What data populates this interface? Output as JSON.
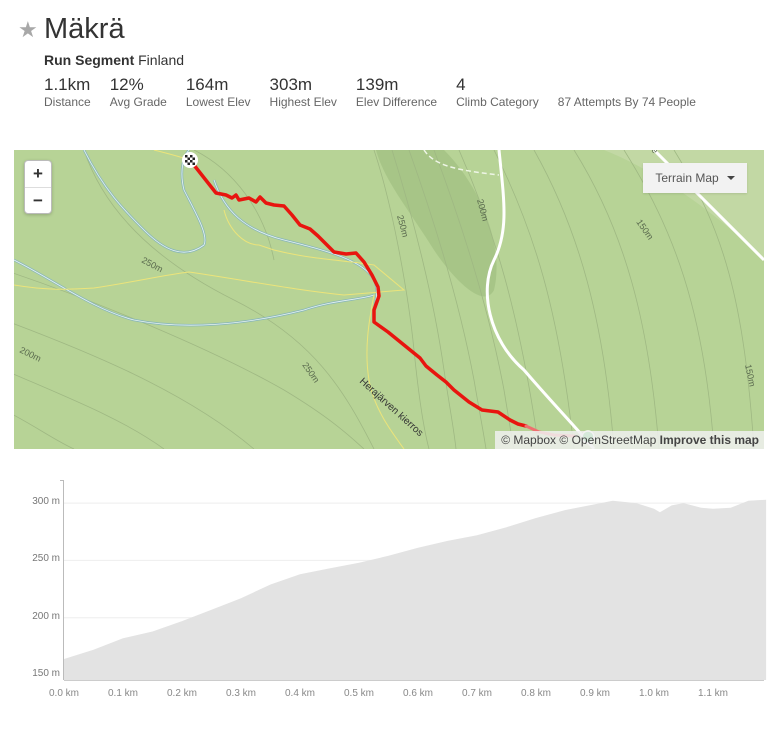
{
  "segment": {
    "star_icon": "star-icon",
    "title": "Mäkrä",
    "type": "Run Segment",
    "location": "Finland"
  },
  "stats": [
    {
      "value": "1.1km",
      "label": "Distance"
    },
    {
      "value": "12%",
      "label": "Avg Grade"
    },
    {
      "value": "164m",
      "label": "Lowest Elev"
    },
    {
      "value": "303m",
      "label": "Highest Elev"
    },
    {
      "value": "139m",
      "label": "Elev Difference"
    },
    {
      "value": "4",
      "label": "Climb Category"
    }
  ],
  "attempts": "87 Attempts By 74 People",
  "map": {
    "zoom_in": "+",
    "zoom_out": "−",
    "layer_button": "Terrain Map",
    "attribution_mapbox": "© Mapbox",
    "attribution_osm": "© OpenStreetMap",
    "improve_link": "Improve this map",
    "contour_labels": [
      "250m",
      "250m",
      "200m",
      "250m",
      "200m",
      "150m",
      "150m",
      "200m"
    ],
    "trail_label": "Herajärven kierros",
    "colors": {
      "background": "#b7d396",
      "route": "#e8150f",
      "water": "#9ec9c9",
      "trail": "#f0e68c",
      "road": "#ffffff"
    }
  },
  "chart_data": {
    "type": "area",
    "title": "",
    "xlabel": "",
    "ylabel": "",
    "x_ticks": [
      "0.0 km",
      "0.1 km",
      "0.2 km",
      "0.3 km",
      "0.4 km",
      "0.5 km",
      "0.6 km",
      "0.7 km",
      "0.8 km",
      "0.9 km",
      "1.0 km",
      "1.1 km"
    ],
    "y_ticks": [
      "150 m",
      "200 m",
      "250 m",
      "300 m"
    ],
    "xlim": [
      0,
      1.19
    ],
    "ylim": [
      148,
      320
    ],
    "grid": true,
    "fill_color": "#e3e3e3",
    "x": [
      0.0,
      0.05,
      0.1,
      0.15,
      0.2,
      0.25,
      0.3,
      0.35,
      0.4,
      0.45,
      0.5,
      0.55,
      0.6,
      0.65,
      0.7,
      0.75,
      0.8,
      0.85,
      0.9,
      0.93,
      0.97,
      1.0,
      1.01,
      1.03,
      1.05,
      1.08,
      1.1,
      1.13,
      1.16,
      1.19
    ],
    "values": [
      164,
      172,
      182,
      188,
      197,
      207,
      217,
      229,
      238,
      243,
      248,
      254,
      261,
      267,
      272,
      279,
      287,
      294,
      299,
      302,
      300,
      295,
      292,
      298,
      300,
      296,
      295,
      296,
      302,
      303
    ]
  }
}
